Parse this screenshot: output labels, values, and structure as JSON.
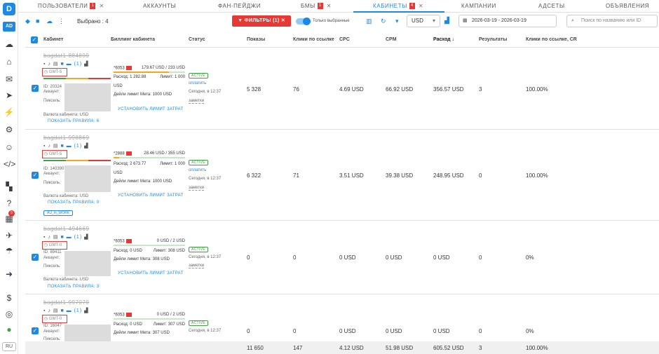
{
  "sidebar": {
    "logo": "D",
    "ad_label": "AD",
    "notification_count": "9",
    "language": "RU"
  },
  "tabs": [
    {
      "label": "ПОЛЬЗОВАТЕЛИ",
      "badge": "1"
    },
    {
      "label": "АККАУНТЫ"
    },
    {
      "label": "ФАН-ПЕЙДЖИ"
    },
    {
      "label": "БМЫ",
      "badge": "1"
    },
    {
      "label": "КАБИНЕТЫ",
      "badge": "4",
      "active": true
    },
    {
      "label": "КАМПАНИИ"
    },
    {
      "label": "АДСЕТЫ"
    },
    {
      "label": "ОБЪЯВЛЕНИЯ"
    }
  ],
  "toolbar": {
    "selected": "Выбрано : 4",
    "filters_label": "ФИЛЬТРЫ (1)",
    "only_selected_label": "Только выбранные",
    "currency": "USD",
    "date_range": "2026-03-19 - 2026-03-19",
    "search_placeholder": "Поиск по названию или ID"
  },
  "columns": {
    "account": "Кабинет",
    "billing": "Биллинг кабинета",
    "status": "Статус",
    "impressions": "Показы",
    "link_clicks": "Клики по ссылке",
    "cpc": "CPC",
    "cpm": "CPM",
    "spend": "Расход ↓",
    "results": "Результаты",
    "cr": "Клики по ссылке, CR"
  },
  "rows": [
    {
      "name": "bagdat1-884899",
      "gmt": "GMT-5",
      "id": "ID: 20324",
      "account_label": "Аккаунт:",
      "pixel_label": "Пиксель:",
      "currency": "Валюта кабинета: USD",
      "rules": "ПОКАЗАТЬ ПРАВИЛА: 6",
      "tag": "",
      "card": "*6053",
      "balance": "179.67 USD / 233 USD",
      "spent_line": "Расход: 1 282.88",
      "limit_line": "Лимит: 1 000",
      "unit": "USD",
      "daily_limit": "Дейли лимит Мета: 1000 USD",
      "set_limit": "УСТАНОВИТЬ ЛИМИТ ЗАТРАТ",
      "status": "ACTIVE",
      "pay": "оплатить",
      "time": "Сегодня, в 12:37",
      "notes": "заметки",
      "impressions": "5 328",
      "clicks": "76",
      "cpc": "4.69 USD",
      "cpm": "66.92 USD",
      "spend": "356.57 USD",
      "results": "3",
      "cr": "100.00%",
      "bill_fill": 0.77
    },
    {
      "name": "bagdat1-998869",
      "gmt": "GMT-5",
      "id": "ID: 140390",
      "account_label": "Аккаунт:",
      "pixel_label": "Пиксель:",
      "currency": "Валюта кабинета: USD",
      "rules": "ПОКАЗАТЬ ПРАВИЛА: 0",
      "tag": "AU_in_WORK",
      "card": "*2888",
      "balance": "28.46 USD / 355 USD",
      "spent_line": "Расход: 2 673.77",
      "limit_line": "Лимит: 1 000",
      "unit": "USD",
      "daily_limit": "Дейли лимит Мета: 1000 USD",
      "set_limit": "УСТАНОВИТЬ ЛИМИТ ЗАТРАТ",
      "status": "ACTIVE",
      "pay": "оплатить",
      "time": "Сегодня, в 12:37",
      "notes": "заметки",
      "impressions": "6 322",
      "clicks": "71",
      "cpc": "3.51 USD",
      "cpm": "39.38 USD",
      "spend": "248.95 USD",
      "results": "0",
      "cr": "100.00%",
      "bill_fill": 0.08
    },
    {
      "name": "bagdat1-494669",
      "gmt": "GMT-0",
      "id": "ID: 89411",
      "account_label": "Аккаунт:",
      "pixel_label": "Пиксель:",
      "currency": "Валюта кабинета: USD",
      "rules": "ПОКАЗАТЬ ПРАВИЛА: 3",
      "tag": "",
      "card": "*6053",
      "balance": "0 USD / 2 USD",
      "spent_line": "Расход: 0 USD",
      "limit_line": "Лимит: 308 USD",
      "unit": "",
      "daily_limit": "Дейли лимит Мета: 308 USD",
      "set_limit": "УСТАНОВИТЬ ЛИМИТ ЗАТРАТ",
      "status": "ACTIVE",
      "pay": "",
      "time": "Сегодня, в 12:37",
      "notes": "заметки",
      "impressions": "0",
      "clicks": "0",
      "cpc": "0 USD",
      "cpm": "0 USD",
      "spend": "0 USD",
      "results": "0",
      "cr": "0%",
      "bill_fill": 0
    },
    {
      "name": "bagdat1-997079",
      "gmt": "GMT-0",
      "id": "ID: 16047",
      "account_label": "Аккаунт:",
      "pixel_label": "Пиксель:",
      "currency": "",
      "rules": "",
      "tag": "",
      "card": "*6053",
      "balance": "0 USD / 2 USD",
      "spent_line": "Расход: 0 USD",
      "limit_line": "Лимит: 307 USD",
      "unit": "",
      "daily_limit": "Дейли лимит Мета: 307 USD",
      "set_limit": "",
      "status": "ACTIVE",
      "pay": "",
      "time": "Сегодня, в 12:37",
      "notes": "",
      "impressions": "0",
      "clicks": "0",
      "cpc": "0 USD",
      "cpm": "0 USD",
      "spend": "0 USD",
      "results": "0",
      "cr": "0%",
      "bill_fill": 0
    }
  ],
  "totals": {
    "impressions": "11 650",
    "clicks": "147",
    "cpc": "4.12 USD",
    "cpm": "51.98 USD",
    "spend": "605.52 USD",
    "results": "3",
    "cr": "100.00%"
  },
  "colors": {
    "accent": "#1e88e5",
    "danger": "#e53935",
    "success": "#43a047"
  }
}
